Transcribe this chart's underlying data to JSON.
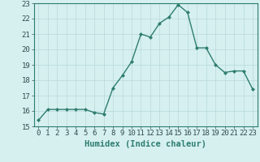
{
  "x": [
    0,
    1,
    2,
    3,
    4,
    5,
    6,
    7,
    8,
    9,
    10,
    11,
    12,
    13,
    14,
    15,
    16,
    17,
    18,
    19,
    20,
    21,
    22,
    23
  ],
  "y": [
    15.4,
    16.1,
    16.1,
    16.1,
    16.1,
    16.1,
    15.9,
    15.8,
    17.5,
    18.3,
    19.2,
    21.0,
    20.8,
    21.7,
    22.1,
    22.9,
    22.4,
    20.1,
    20.1,
    19.0,
    18.5,
    18.6,
    18.6,
    17.4
  ],
  "line_color": "#2e7d6e",
  "marker": "D",
  "marker_size": 2.0,
  "bg_color": "#d6f0f0",
  "grid_color": "#b8d8d8",
  "xlabel": "Humidex (Indice chaleur)",
  "xlim": [
    -0.5,
    23.5
  ],
  "ylim": [
    15,
    23
  ],
  "yticks": [
    15,
    16,
    17,
    18,
    19,
    20,
    21,
    22,
    23
  ],
  "xticks": [
    0,
    1,
    2,
    3,
    4,
    5,
    6,
    7,
    8,
    9,
    10,
    11,
    12,
    13,
    14,
    15,
    16,
    17,
    18,
    19,
    20,
    21,
    22,
    23
  ],
  "xlabel_fontsize": 7.5,
  "tick_fontsize": 6.5,
  "line_width": 1.0
}
